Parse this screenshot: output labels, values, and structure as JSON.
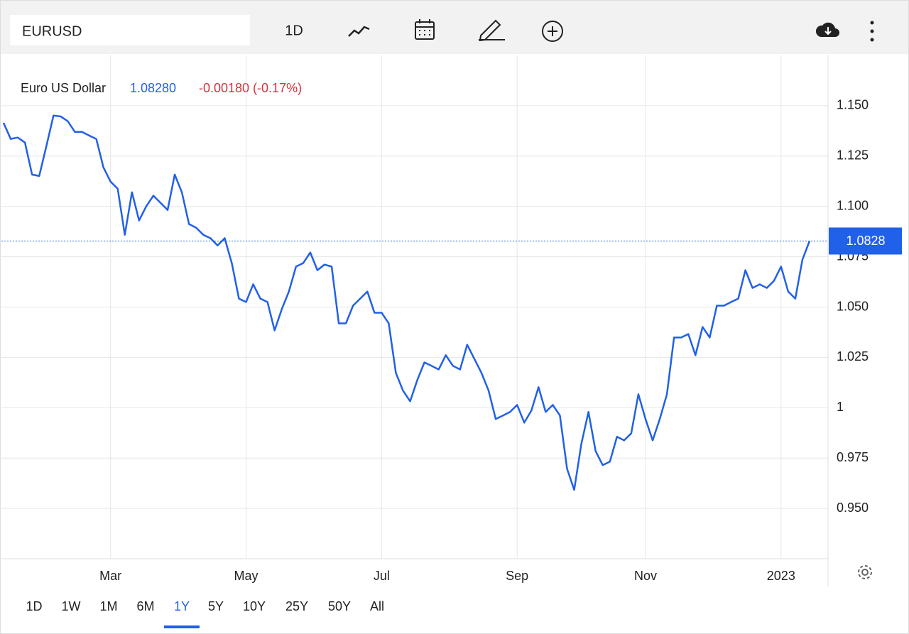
{
  "toolbar": {
    "symbol": "EURUSD",
    "interval": "1D"
  },
  "quote": {
    "last": "1.08280",
    "change": "-0.00180 (-0.17%)"
  },
  "chart_data": {
    "type": "line",
    "categories": [
      null,
      null,
      null,
      null,
      null,
      null,
      null,
      null,
      null,
      null,
      null,
      null,
      null,
      null,
      null,
      "Mar",
      null,
      null,
      null,
      null,
      null,
      null,
      null,
      null,
      null,
      null,
      null,
      null,
      null,
      null,
      null,
      null,
      null,
      null,
      "May",
      null,
      null,
      null,
      null,
      null,
      null,
      null,
      null,
      null,
      null,
      null,
      null,
      null,
      null,
      null,
      null,
      null,
      null,
      "Jul",
      null,
      null,
      null,
      null,
      null,
      null,
      null,
      null,
      null,
      null,
      null,
      null,
      null,
      null,
      null,
      null,
      null,
      null,
      "Sep",
      null,
      null,
      null,
      null,
      null,
      null,
      null,
      null,
      null,
      null,
      null,
      null,
      null,
      null,
      null,
      null,
      null,
      "Nov",
      null,
      null,
      null,
      null,
      null,
      null,
      null,
      null,
      null,
      null,
      null,
      null,
      null,
      null,
      null,
      null,
      null,
      null,
      "2023",
      null,
      null,
      null,
      null
    ],
    "series": [
      {
        "name": "Euro US Dollar",
        "color": "#2160e8",
        "values": [
          1.1415,
          1.1335,
          1.1342,
          1.1317,
          1.1158,
          1.1151,
          1.1299,
          1.1451,
          1.1447,
          1.1423,
          1.137,
          1.137,
          1.1352,
          1.1335,
          1.1194,
          1.1123,
          1.1088,
          1.0859,
          1.107,
          1.093,
          1.1,
          1.1053,
          1.1018,
          1.0982,
          1.1158,
          1.107,
          1.0912,
          1.0894,
          1.0859,
          1.0842,
          1.0806,
          1.0842,
          1.0718,
          1.0542,
          1.0525,
          1.0613,
          1.0542,
          1.0525,
          1.0384,
          1.0489,
          1.0577,
          1.0701,
          1.0718,
          1.0771,
          1.0683,
          1.0711,
          1.0701,
          1.0419,
          1.0419,
          1.0507,
          1.0542,
          1.0577,
          1.0472,
          1.0472,
          1.0419,
          1.0173,
          1.0085,
          1.0032,
          1.0137,
          1.0225,
          1.0208,
          1.019,
          1.0261,
          1.0208,
          1.019,
          1.0313,
          1.0243,
          1.0173,
          1.0085,
          0.9944,
          0.9961,
          0.9979,
          1.0014,
          0.9926,
          0.9986,
          1.0102,
          0.9979,
          1.0014,
          0.9961,
          0.9697,
          0.9592,
          0.982,
          0.9979,
          0.9785,
          0.9715,
          0.9732,
          0.9856,
          0.9838,
          0.9873,
          1.0067,
          0.9944,
          0.9838,
          0.9944,
          1.0067,
          1.0349,
          1.0349,
          1.0366,
          1.0261,
          1.0401,
          1.0349,
          1.0507,
          1.0507,
          1.0525,
          1.0542,
          1.0683,
          1.0595,
          1.0613,
          1.0595,
          1.063,
          1.0701,
          1.0577,
          1.0542,
          1.0736,
          1.0828
        ]
      }
    ],
    "ylim": [
      0.925,
      1.175
    ],
    "yticks": [
      {
        "value": 0.95,
        "label": "0.950"
      },
      {
        "value": 0.975,
        "label": "0.975"
      },
      1,
      {
        "value": 1.025,
        "label": "1.025"
      },
      {
        "value": 1.05,
        "label": "1.050"
      },
      {
        "value": 1.075,
        "label": "1.075"
      },
      {
        "value": 1.1,
        "label": "1.100"
      },
      {
        "value": 1.125,
        "label": "1.125"
      },
      {
        "value": 1.15,
        "label": "1.150"
      }
    ],
    "grid": true
  },
  "ranges": {
    "options": [
      "1D",
      "1W",
      "1M",
      "6M",
      "1Y",
      "5Y",
      "10Y",
      "25Y",
      "50Y",
      "All"
    ],
    "active_index": 4
  }
}
